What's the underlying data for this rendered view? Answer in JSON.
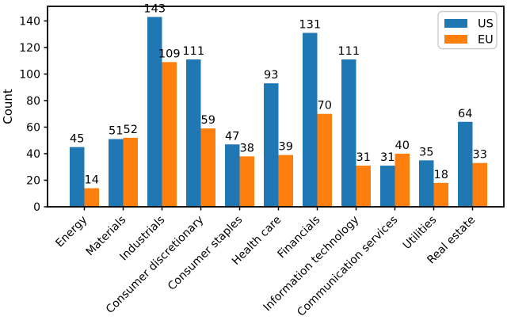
{
  "chart_data": {
    "type": "bar",
    "title": "",
    "xlabel": "",
    "ylabel": "Count",
    "categories": [
      "Energy",
      "Materials",
      "Industrials",
      "Consumer discretionary",
      "Consumer staples",
      "Health care",
      "Financials",
      "Information technology",
      "Communication services",
      "Utilities",
      "Real estate"
    ],
    "series": [
      {
        "name": "US",
        "color": "#1f77b4",
        "values": [
          45,
          51,
          143,
          111,
          47,
          93,
          131,
          111,
          31,
          35,
          64
        ]
      },
      {
        "name": "EU",
        "color": "#ff7f0e",
        "values": [
          14,
          52,
          109,
          59,
          38,
          39,
          70,
          31,
          40,
          18,
          33
        ]
      }
    ],
    "bar_value_labels": true,
    "yticks": [
      0,
      20,
      40,
      60,
      80,
      100,
      120,
      140
    ],
    "ylim": [
      0,
      151
    ],
    "grid": false,
    "x_tick_rotation": 45,
    "legend": {
      "position": "upper right",
      "border_color": "#cccccc",
      "background": "#ffffff"
    },
    "axis_color": "#000000",
    "text_color": "#000000",
    "plot_background": "#ffffff"
  }
}
